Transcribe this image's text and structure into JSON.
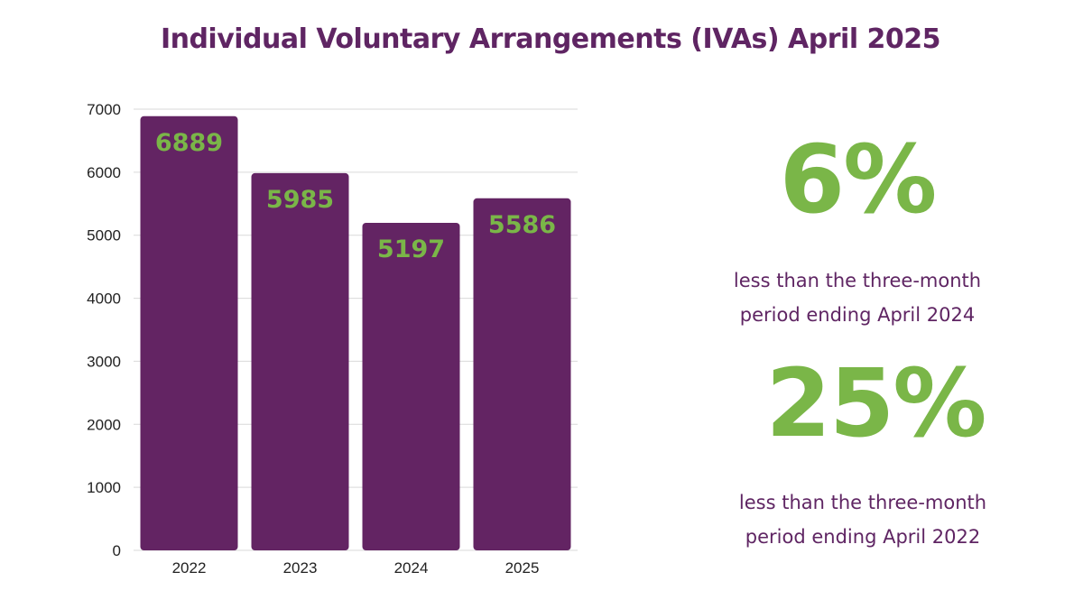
{
  "title": "Individual Voluntary Arrangements (IVAs) April 2025",
  "chart_data": {
    "type": "bar",
    "title": "Individual Voluntary Arrangements (IVAs) April 2025",
    "categories": [
      "2022",
      "2023",
      "2024",
      "2025"
    ],
    "values": [
      6889,
      5985,
      5197,
      5586
    ],
    "data_labels": [
      "6889",
      "5985",
      "5197",
      "5586"
    ],
    "yticks": [
      "0",
      "1000",
      "2000",
      "3000",
      "4000",
      "5000",
      "6000",
      "7000"
    ],
    "ylim": [
      0,
      7000
    ],
    "xlabel": "",
    "ylabel": "",
    "grid": true,
    "bar_color": "#632463",
    "label_color": "#7ab648"
  },
  "stats": [
    {
      "value": "6%",
      "description": "less than the three-month period ending April 2024"
    },
    {
      "value": "25%",
      "description": "less than the three-month period ending April 2022"
    }
  ],
  "colors": {
    "title": "#5f2563",
    "accent": "#7ab648",
    "bar": "#632463"
  }
}
